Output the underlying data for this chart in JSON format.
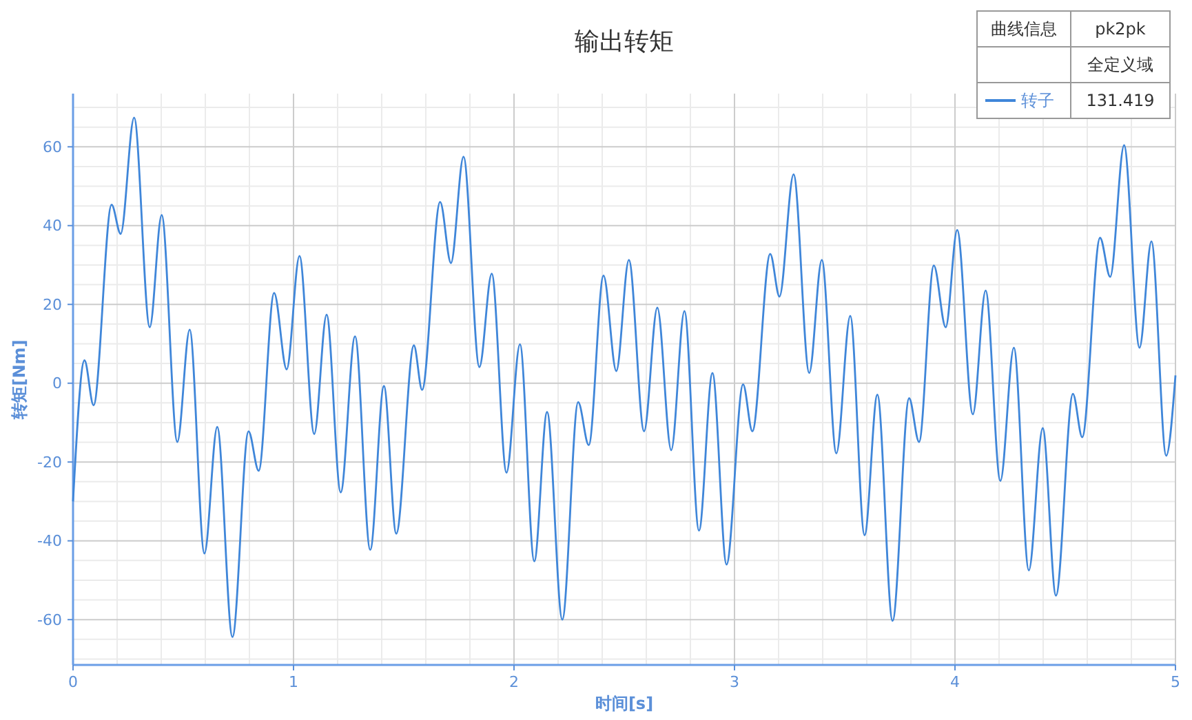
{
  "chart_data": {
    "type": "line",
    "title": "输出转矩",
    "xlabel": "时间[s]",
    "ylabel": "转矩[Nm]",
    "xlim": [
      0,
      5
    ],
    "xticks": [
      0,
      1,
      2,
      3,
      4,
      5
    ],
    "ylim": [
      -71.5,
      73.5
    ],
    "yticks": [
      -60,
      -40,
      -20,
      0,
      20,
      40,
      60
    ],
    "grid": true,
    "legend": "top right",
    "legend_title": "曲线信息",
    "annotations": [
      "pk2pk",
      "全定义域",
      "131.419"
    ],
    "series": [
      {
        "name": "转子",
        "color": "#3f86d9",
        "x": [
          0,
          0.052,
          0.093,
          0.175,
          0.216,
          0.277,
          0.348,
          0.402,
          0.473,
          0.529,
          0.596,
          0.654,
          0.723,
          0.796,
          0.842,
          0.912,
          0.969,
          1.027,
          1.094,
          1.15,
          1.214,
          1.279,
          1.348,
          1.41,
          1.466,
          1.546,
          1.583,
          1.665,
          1.714,
          1.771,
          1.843,
          1.899,
          1.966,
          2.027,
          2.092,
          2.15,
          2.219,
          2.291,
          2.339,
          2.406,
          2.464,
          2.521,
          2.59,
          2.65,
          2.713,
          2.773,
          2.839,
          2.9,
          2.964,
          3.039,
          3.081,
          3.162,
          3.204,
          3.268,
          3.339,
          3.396,
          3.462,
          3.525,
          3.59,
          3.648,
          3.717,
          3.792,
          3.837,
          3.904,
          3.958,
          4.01,
          4.081,
          4.139,
          4.206,
          4.267,
          4.335,
          4.398,
          4.458,
          4.535,
          4.577,
          4.658,
          4.704,
          4.767,
          4.837,
          4.891,
          4.958,
          5
        ],
        "values": [
          -30,
          5.8,
          -5.6,
          45.3,
          37.9,
          67.4,
          14.2,
          42.7,
          -14.9,
          13.6,
          -43.2,
          -11.1,
          -64.4,
          -12.2,
          -22.2,
          22.9,
          3.5,
          32.3,
          -12.9,
          17.4,
          -27.7,
          11.9,
          -42.3,
          -0.7,
          -38.2,
          9.6,
          -1.7,
          46,
          30.5,
          57.5,
          4.1,
          27.8,
          -22.7,
          9.9,
          -45.2,
          -7.3,
          -60,
          -4.8,
          -15.7,
          27.3,
          3.1,
          31.3,
          -12.2,
          19.2,
          -17,
          18.3,
          -37.4,
          2.6,
          -46,
          -0.3,
          -12.2,
          32.8,
          22,
          53,
          2.6,
          31.3,
          -17.8,
          17.1,
          -38.6,
          -2.9,
          -60.3,
          -3.8,
          -14.9,
          29.9,
          14.2,
          38.9,
          -7.9,
          23.5,
          -24.8,
          9,
          -47.5,
          -11.4,
          -53.9,
          -2.7,
          -13.7,
          36.9,
          27,
          60.4,
          9,
          36,
          -18.4,
          2
        ]
      }
    ]
  }
}
